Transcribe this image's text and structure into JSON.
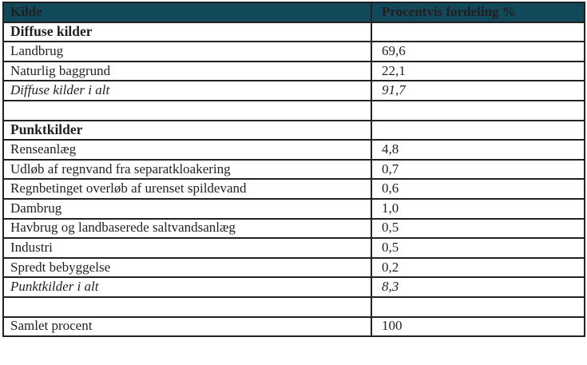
{
  "table": {
    "columns": [
      {
        "label": "Kilde"
      },
      {
        "label": "Procentvis fordeling %"
      }
    ],
    "rows": [
      {
        "label": "Diffuse kilder",
        "value": "",
        "style": "bold"
      },
      {
        "label": "Landbrug",
        "value": "69,6",
        "style": "normal"
      },
      {
        "label": "Naturlig baggrund",
        "value": "22,1",
        "style": "normal"
      },
      {
        "label": "Diffuse kilder i alt",
        "value": "91,7",
        "style": "italic"
      },
      {
        "label": "",
        "value": "",
        "style": "empty"
      },
      {
        "label": "Punktkilder",
        "value": "",
        "style": "bold"
      },
      {
        "label": "Renseanlæg",
        "value": "4,8",
        "style": "normal"
      },
      {
        "label": "Udløb af regnvand fra separatkloakering",
        "value": "0,7",
        "style": "normal"
      },
      {
        "label": "Regnbetinget overløb af urenset spildevand",
        "value": "0,6",
        "style": "normal"
      },
      {
        "label": "Dambrug",
        "value": "1,0",
        "style": "normal"
      },
      {
        "label": "Havbrug og landbaserede saltvandsanlæg",
        "value": "0,5",
        "style": "normal"
      },
      {
        "label": "Industri",
        "value": "0,5",
        "style": "normal"
      },
      {
        "label": "Spredt bebyggelse",
        "value": "0,2",
        "style": "normal"
      },
      {
        "label": "Punktkilder i alt",
        "value": "8,3",
        "style": "italic"
      },
      {
        "label": "",
        "value": "",
        "style": "empty"
      },
      {
        "label": "Samlet procent",
        "value": "100",
        "style": "normal"
      }
    ],
    "colors": {
      "header_bg": "#11485a",
      "header_text": "#eef5f5",
      "border": "#222222",
      "body_text": "#231f20"
    }
  }
}
